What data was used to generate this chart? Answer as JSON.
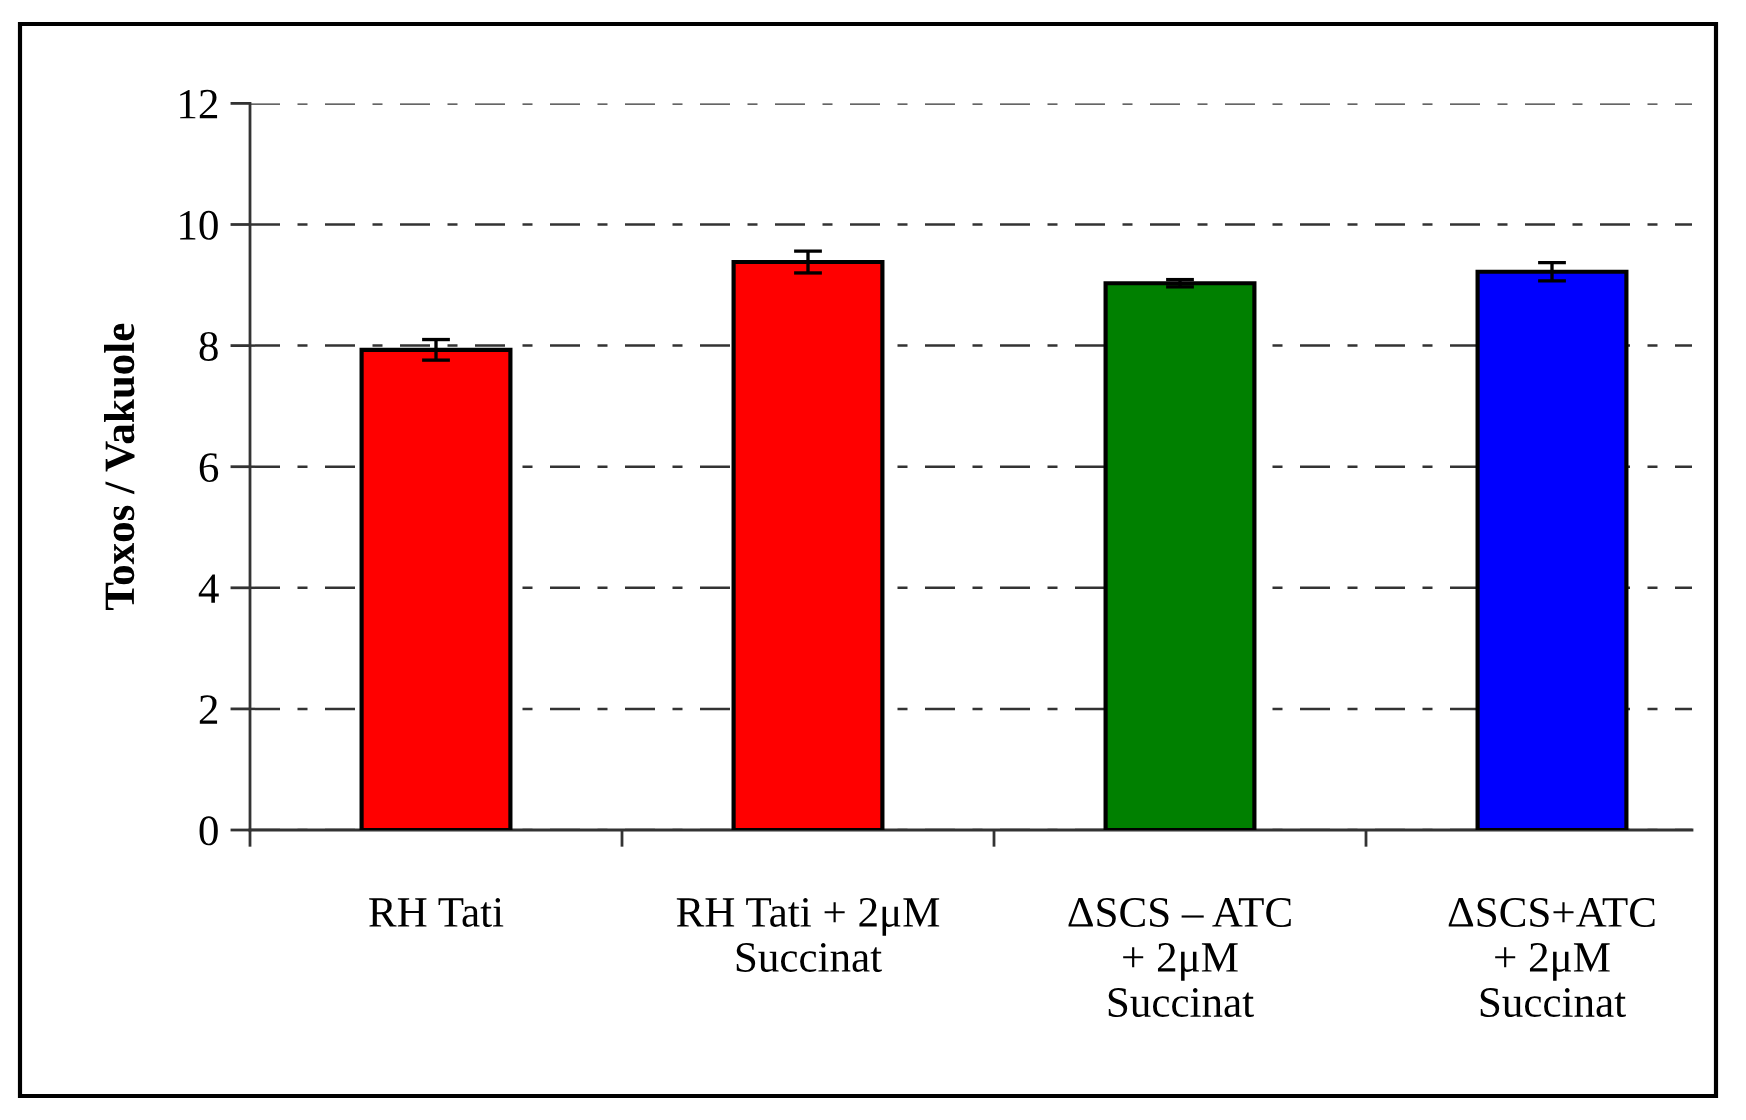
{
  "chart_data": {
    "type": "bar",
    "ylabel": "Toxos / Vakuole",
    "categories": [
      "RH Tati",
      "RH Tati + 2μM\nSuccinat",
      "ΔSCS – ATC\n+ 2μM\nSuccinat",
      "ΔSCS+ATC\n+ 2μM\nSuccinat"
    ],
    "values": [
      7.93,
      9.38,
      9.03,
      9.22
    ],
    "errors": [
      0.17,
      0.18,
      0.06,
      0.15
    ],
    "colors": [
      "#ff0000",
      "#ff0000",
      "#008000",
      "#0000ff"
    ],
    "ylim": [
      0,
      12
    ],
    "yticks": [
      0,
      2,
      4,
      6,
      8,
      10,
      12
    ],
    "grid": "y"
  }
}
